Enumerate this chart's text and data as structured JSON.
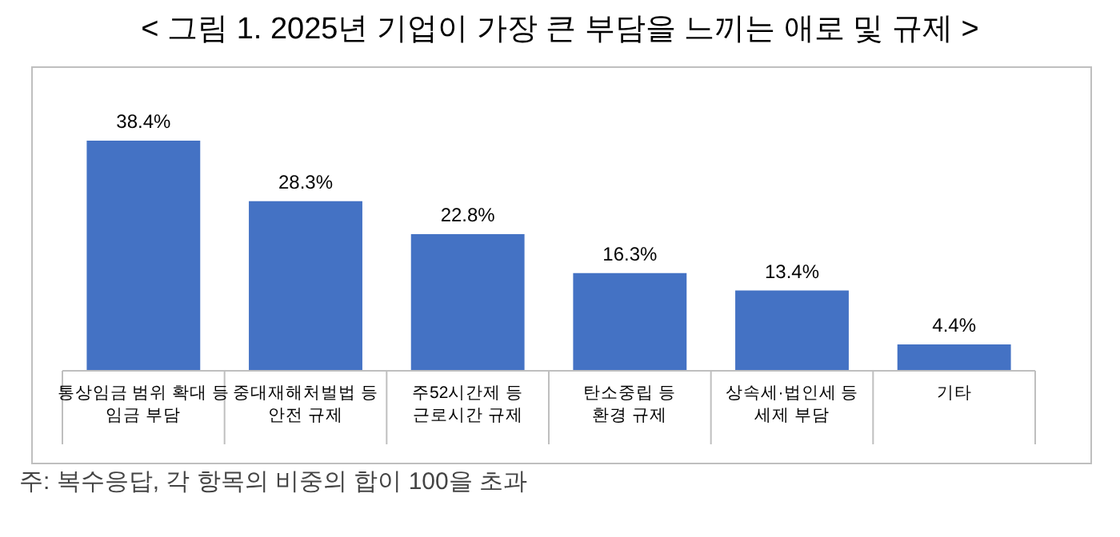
{
  "chart_data": {
    "type": "bar",
    "title": "< 그림 1. 2025년 기업이 가장 큰 부담을 느끼는 애로 및 규제 >",
    "categories": [
      "통상임금 범위 확대 등\n임금 부담",
      "중대재해처벌법 등\n안전 규제",
      "주52시간제 등\n근로시간 규제",
      "탄소중립 등\n환경 규제",
      "상속세·법인세 등\n세제 부담",
      "기타"
    ],
    "values": [
      38.4,
      28.3,
      22.8,
      16.3,
      13.4,
      4.4
    ],
    "color": "#4472c4",
    "value_labels": [
      "38.4%",
      "28.3%",
      "22.8%",
      "16.3%",
      "13.4%",
      "4.4%"
    ],
    "annotations": [
      "주: 복수응답, 각 항목의 비중의 합이 100을 초과"
    ]
  }
}
